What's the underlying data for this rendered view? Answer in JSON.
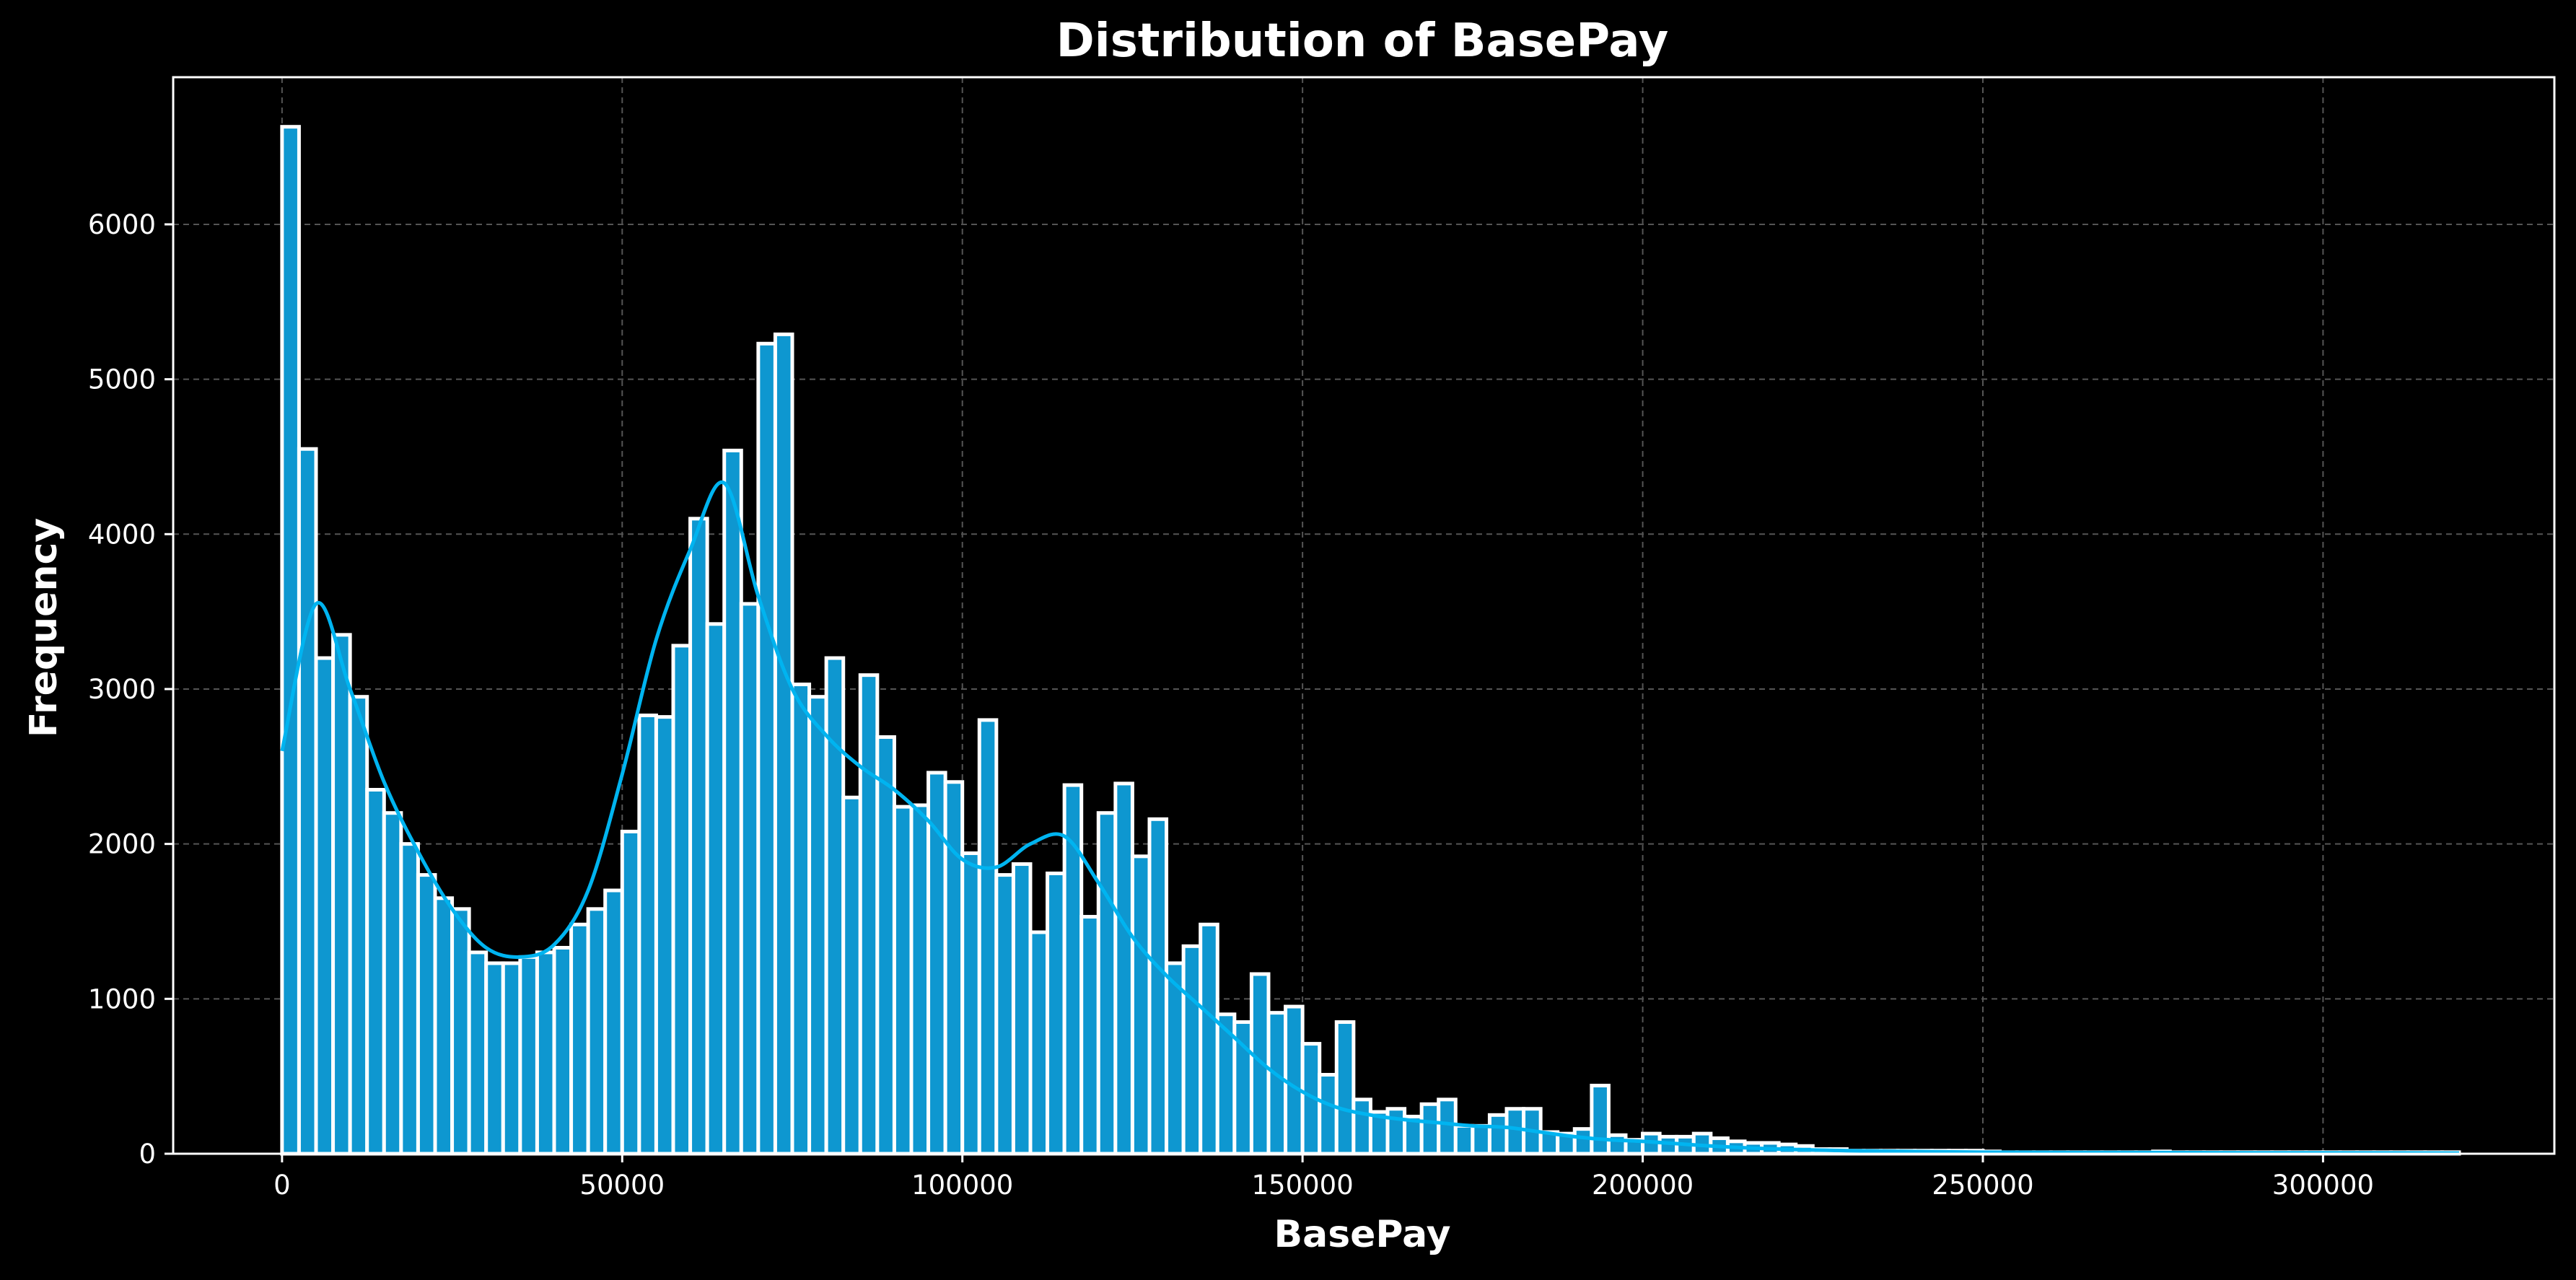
{
  "chart_data": {
    "type": "bar",
    "title": "Distribution of BasePay",
    "xlabel": "BasePay",
    "ylabel": "Frequency",
    "xlim": [
      -16000,
      334000
    ],
    "ylim": [
      0,
      6950
    ],
    "xticks": [
      0,
      50000,
      100000,
      150000,
      200000,
      250000,
      300000
    ],
    "yticks": [
      0,
      1000,
      2000,
      3000,
      4000,
      5000,
      6000
    ],
    "grid": true,
    "bin_width": 2500,
    "bins": {
      "x_start": [
        0,
        2500,
        5000,
        7500,
        10000,
        12500,
        15000,
        17500,
        20000,
        22500,
        25000,
        27500,
        30000,
        32500,
        35000,
        37500,
        40000,
        42500,
        45000,
        47500,
        50000,
        52500,
        55000,
        57500,
        60000,
        62500,
        65000,
        67500,
        70000,
        72500,
        75000,
        77500,
        80000,
        82500,
        85000,
        87500,
        90000,
        92500,
        95000,
        97500,
        100000,
        102500,
        105000,
        107500,
        110000,
        112500,
        115000,
        117500,
        120000,
        122500,
        125000,
        127500,
        130000,
        132500,
        135000,
        137500,
        140000,
        142500,
        145000,
        147500,
        150000,
        152500,
        155000,
        157500,
        160000,
        162500,
        165000,
        167500,
        170000,
        172500,
        175000,
        177500,
        180000,
        182500,
        185000,
        187500,
        190000,
        192500,
        195000,
        197500,
        200000,
        202500,
        205000,
        207500,
        210000,
        212500,
        215000,
        217500,
        220000,
        222500,
        225000,
        227500,
        230000,
        232500,
        235000,
        237500,
        240000,
        242500,
        245000,
        247500,
        250000,
        252500,
        255000,
        257500,
        260000,
        262500,
        265000,
        267500,
        270000,
        272500,
        275000,
        277500,
        280000,
        282500,
        285000,
        287500,
        290000,
        292500,
        295000,
        297500,
        300000,
        302500,
        305000,
        307500,
        310000,
        312500,
        315000,
        317500
      ],
      "counts": [
        6630,
        4550,
        3200,
        3350,
        2950,
        2350,
        2200,
        2000,
        1800,
        1650,
        1580,
        1300,
        1230,
        1230,
        1270,
        1300,
        1330,
        1480,
        1580,
        1700,
        2080,
        2830,
        2820,
        3280,
        4100,
        3420,
        4540,
        3550,
        5230,
        5290,
        3030,
        2950,
        3200,
        2300,
        3090,
        2690,
        2240,
        2250,
        2460,
        2400,
        1940,
        2800,
        1800,
        1870,
        1430,
        1810,
        2380,
        1530,
        2200,
        2390,
        1920,
        2160,
        1230,
        1340,
        1480,
        900,
        850,
        1160,
        910,
        950,
        710,
        510,
        850,
        350,
        270,
        290,
        240,
        320,
        350,
        180,
        180,
        250,
        290,
        290,
        140,
        130,
        160,
        440,
        120,
        90,
        130,
        110,
        110,
        130,
        100,
        80,
        70,
        70,
        60,
        50,
        30,
        30,
        20,
        20,
        20,
        20,
        20,
        20,
        20,
        20,
        15,
        10,
        10,
        10,
        10,
        10,
        10,
        10,
        10,
        10,
        15,
        10,
        10,
        10,
        10,
        10,
        10,
        10,
        10,
        10,
        10,
        10,
        10,
        10,
        10,
        10,
        10,
        10
      ]
    },
    "kde": {
      "x": [
        0,
        5000,
        10000,
        15000,
        20000,
        25000,
        30000,
        35000,
        40000,
        45000,
        50000,
        55000,
        60000,
        65000,
        70000,
        75000,
        80000,
        85000,
        90000,
        95000,
        100000,
        105000,
        110000,
        115000,
        120000,
        125000,
        130000,
        135000,
        140000,
        145000,
        150000,
        155000,
        160000,
        165000,
        170000,
        175000,
        180000,
        185000,
        190000,
        195000,
        200000,
        210000,
        220000,
        230000,
        250000,
        270000,
        290000,
        310000,
        320000
      ],
      "y": [
        2600,
        3550,
        3000,
        2400,
        1950,
        1580,
        1330,
        1270,
        1350,
        1700,
        2450,
        3320,
        3900,
        4330,
        3600,
        3000,
        2700,
        2500,
        2350,
        2150,
        1900,
        1850,
        2000,
        2050,
        1750,
        1400,
        1150,
        950,
        750,
        550,
        400,
        300,
        250,
        220,
        200,
        180,
        170,
        140,
        110,
        90,
        80,
        50,
        30,
        20,
        10,
        8,
        6,
        5,
        4
      ]
    },
    "colors": {
      "background": "#000000",
      "bar_fill": "#0e97d0",
      "bar_edge": "#ffffff",
      "kde_line": "#00b4f0",
      "grid": "#555555",
      "text": "#ffffff"
    }
  }
}
